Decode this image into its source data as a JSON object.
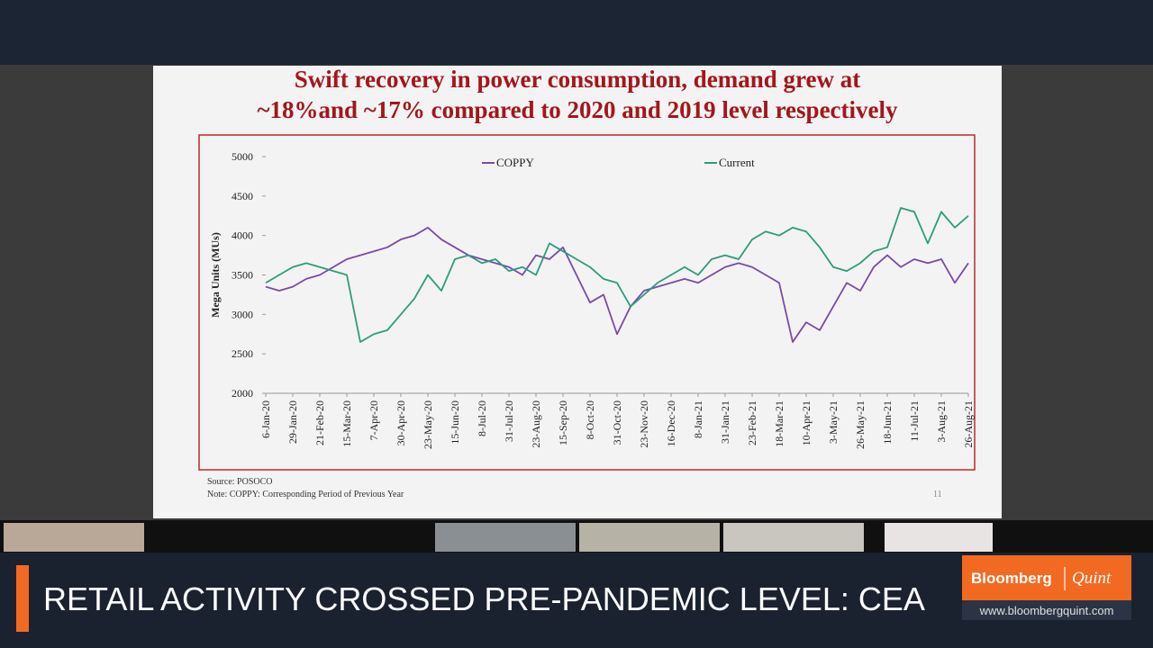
{
  "chart_data": {
    "type": "line",
    "title": "Swift recovery in power consumption, demand grew at",
    "subtitle": "~18%and ~17% compared to 2020 and 2019 level respectively",
    "y_label": "Mega Units (MUs)",
    "categories": [
      "6-Jan-20",
      null,
      "29-Jan-20",
      null,
      "21-Feb-20",
      null,
      "15-Mar-20",
      null,
      "7-Apr-20",
      null,
      "30-Apr-20",
      null,
      "23-May-20",
      null,
      "15-Jun-20",
      null,
      "8-Jul-20",
      null,
      "31-Jul-20",
      null,
      "23-Aug-20",
      null,
      "15-Sep-20",
      null,
      "8-Oct-20",
      null,
      "31-Oct-20",
      null,
      "23-Nov-20",
      null,
      "16-Dec-20",
      null,
      "8-Jan-21",
      null,
      "31-Jan-21",
      null,
      "23-Feb-21",
      null,
      "18-Mar-21",
      null,
      "10-Apr-21",
      null,
      "3-May-21",
      null,
      "26-May-21",
      null,
      "18-Jun-21",
      null,
      "11-Jul-21",
      null,
      "3-Aug-21",
      null,
      "26-Aug-21"
    ],
    "series": [
      {
        "name": "COPPY",
        "color": "#7a4aa8",
        "values": [
          3350,
          3300,
          3350,
          3450,
          3500,
          3600,
          3700,
          3750,
          3800,
          3850,
          3950,
          4000,
          4100,
          3950,
          3850,
          3750,
          3700,
          3650,
          3600,
          3500,
          3750,
          3700,
          3850,
          3500,
          3150,
          3250,
          2750,
          3100,
          3300,
          3350,
          3400,
          3450,
          3400,
          3500,
          3600,
          3650,
          3600,
          3500,
          3400,
          2650,
          2900,
          2800,
          3100,
          3400,
          3300,
          3600,
          3750,
          3600,
          3700,
          3650,
          3700,
          3400,
          3650
        ]
      },
      {
        "name": "Current",
        "color": "#2e9c7a",
        "values": [
          3400,
          3500,
          3600,
          3650,
          3600,
          3550,
          3500,
          2650,
          2750,
          2800,
          3000,
          3200,
          3500,
          3300,
          3700,
          3750,
          3650,
          3700,
          3550,
          3600,
          3500,
          3900,
          3800,
          3700,
          3600,
          3450,
          3400,
          3100,
          3250,
          3400,
          3500,
          3600,
          3500,
          3700,
          3750,
          3700,
          3950,
          4050,
          4000,
          4100,
          4050,
          3850,
          3600,
          3550,
          3650,
          3800,
          3850,
          4350,
          4300,
          3900,
          4300,
          4100,
          4250
        ]
      }
    ],
    "ylim": [
      2000,
      5000
    ],
    "yticks": [
      2000,
      2500,
      3000,
      3500,
      4000,
      4500,
      5000
    ]
  },
  "slide": {
    "source": "Source: POSOCO",
    "note": "Note: COPPY: Corresponding Period of Previous Year",
    "page_number": "11"
  },
  "ticker": {
    "headline": "RETAIL ACTIVITY CROSSED PRE-PANDEMIC LEVEL: CEA",
    "brand": "Bloomberg",
    "brand2": "Quint",
    "url": "www.bloombergquint.com"
  }
}
